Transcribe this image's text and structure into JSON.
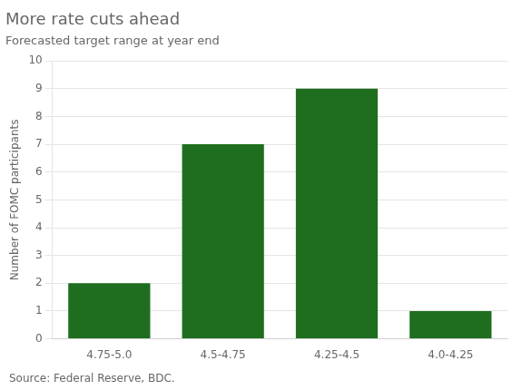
{
  "chart_data": {
    "type": "bar",
    "title": "More rate cuts ahead",
    "subtitle": "Forecasted target range at year end",
    "source": "Source: Federal Reserve, BDC.",
    "ylabel": "Number of FOMC participants",
    "categories": [
      "4.75-5.0",
      "4.5-4.75",
      "4.25-4.5",
      "4.0-4.25"
    ],
    "values": [
      2,
      7,
      9,
      1
    ],
    "color": "#1f6e1f",
    "ylim": [
      0,
      10
    ],
    "yticks": [
      0,
      1,
      2,
      3,
      4,
      5,
      6,
      7,
      8,
      9,
      10
    ],
    "grid": true
  }
}
